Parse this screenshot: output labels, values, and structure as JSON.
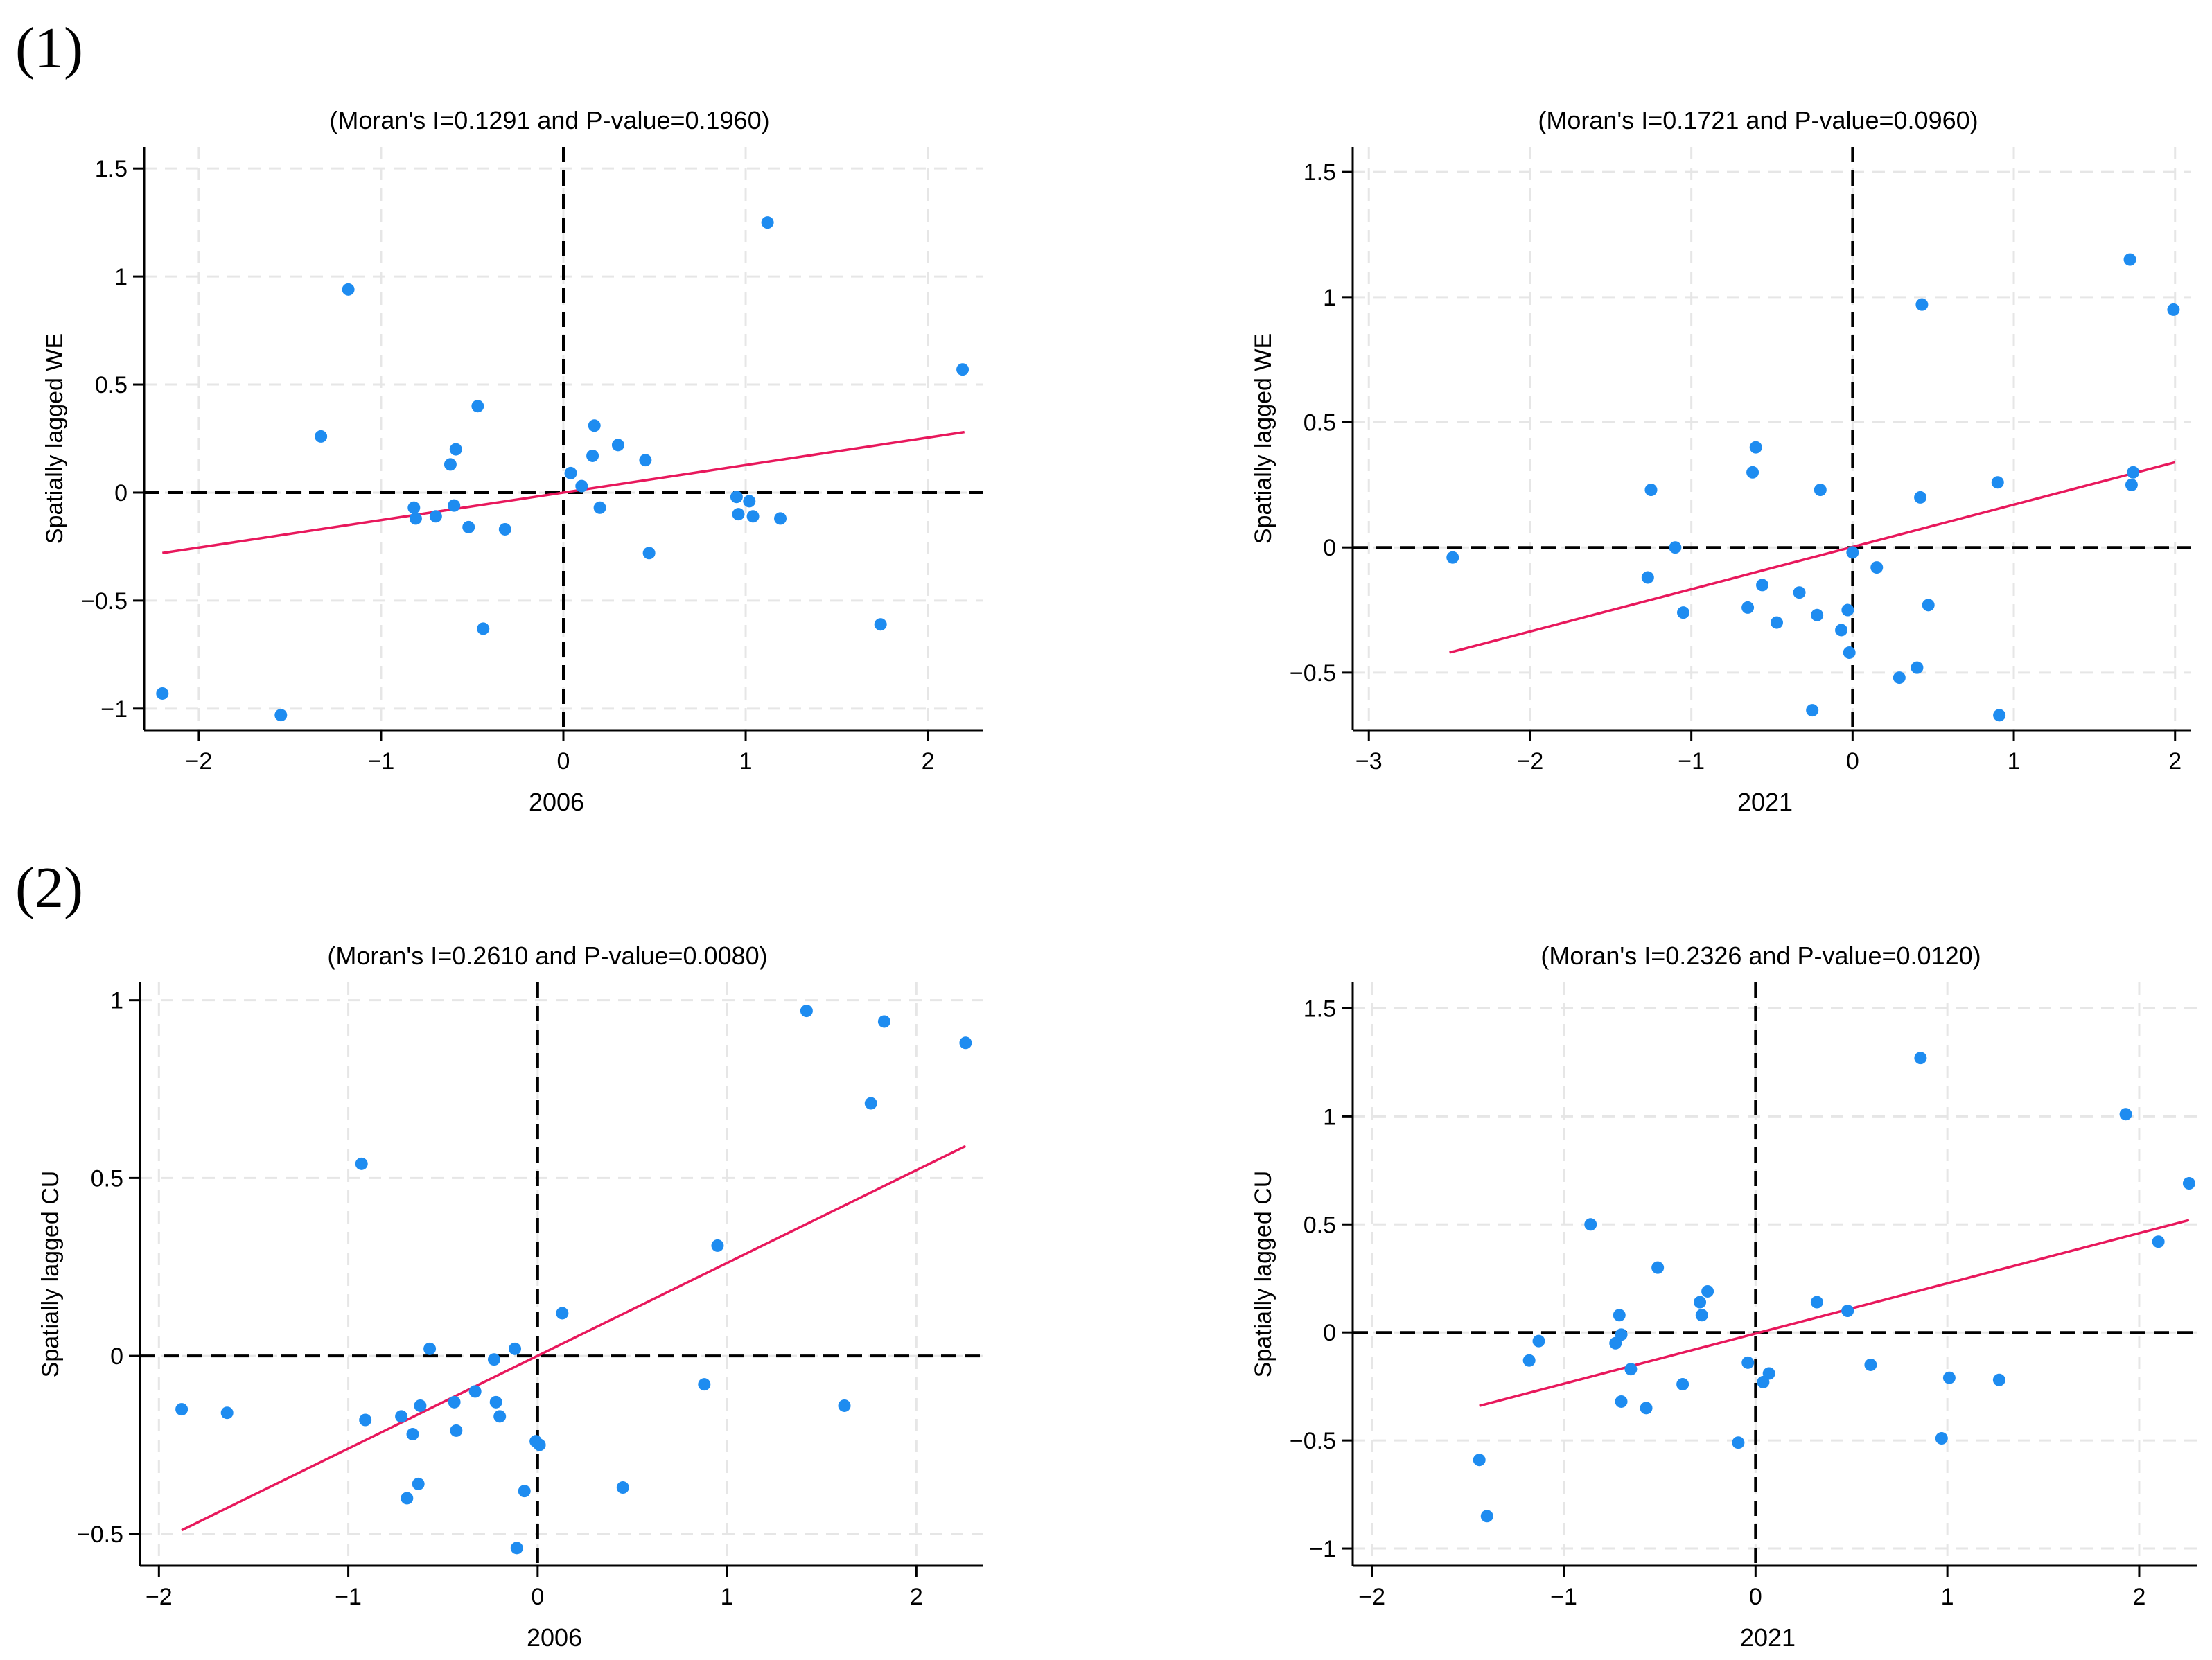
{
  "figure": {
    "section_labels": [
      "(1)",
      "(2)"
    ]
  },
  "colors": {
    "point": "#1e8cf0",
    "fit": "#e8185c",
    "grid": "#e6e6e6",
    "axis": "#000000"
  },
  "chart_data": [
    {
      "type": "scatter",
      "title": "(Moran's I=0.1291 and P-value=0.1960)",
      "xlabel": "2006",
      "ylabel": "Spatially lagged WE",
      "xlim": [
        -2.3,
        2.3
      ],
      "ylim": [
        -1.1,
        1.6
      ],
      "xticks": [
        -2,
        -1,
        0,
        1,
        2
      ],
      "yticks": [
        -1,
        -0.5,
        0,
        0.5,
        1,
        1.5
      ],
      "xtick_labels": [
        "−2",
        "−1",
        "0",
        "1",
        "2"
      ],
      "ytick_labels": [
        "−1",
        "−0.5",
        "0",
        "0.5",
        "1",
        "1.5"
      ],
      "fit_line": {
        "x": [
          -2.2,
          2.2
        ],
        "y": [
          -0.28,
          0.28
        ]
      },
      "points": [
        [
          -2.2,
          -0.93
        ],
        [
          -1.55,
          -1.03
        ],
        [
          -1.33,
          0.26
        ],
        [
          -1.18,
          0.94
        ],
        [
          -0.82,
          -0.07
        ],
        [
          -0.81,
          -0.12
        ],
        [
          -0.7,
          -0.11
        ],
        [
          -0.62,
          0.13
        ],
        [
          -0.59,
          0.2
        ],
        [
          -0.6,
          -0.06
        ],
        [
          -0.52,
          -0.16
        ],
        [
          -0.47,
          0.4
        ],
        [
          -0.44,
          -0.63
        ],
        [
          -0.32,
          -0.17
        ],
        [
          0.04,
          0.09
        ],
        [
          0.1,
          0.03
        ],
        [
          0.16,
          0.17
        ],
        [
          0.17,
          0.31
        ],
        [
          0.2,
          -0.07
        ],
        [
          0.3,
          0.22
        ],
        [
          0.45,
          0.15
        ],
        [
          0.47,
          -0.28
        ],
        [
          0.95,
          -0.02
        ],
        [
          0.96,
          -0.1
        ],
        [
          1.02,
          -0.04
        ],
        [
          1.04,
          -0.11
        ],
        [
          1.12,
          1.25
        ],
        [
          1.19,
          -0.12
        ],
        [
          1.74,
          -0.61
        ],
        [
          2.19,
          0.57
        ]
      ]
    },
    {
      "type": "scatter",
      "title": "(Moran's I=0.1721 and P-value=0.0960)",
      "xlabel": "2021",
      "ylabel": "Spatially lagged WE",
      "xlim": [
        -3.1,
        2.1
      ],
      "ylim": [
        -0.73,
        1.6
      ],
      "xticks": [
        -3,
        -2,
        -1,
        0,
        1,
        2
      ],
      "yticks": [
        -0.5,
        0,
        0.5,
        1,
        1.5
      ],
      "xtick_labels": [
        "−3",
        "−2",
        "−1",
        "0",
        "1",
        "2"
      ],
      "ytick_labels": [
        "−0.5",
        "0",
        "0.5",
        "1",
        "1.5"
      ],
      "fit_line": {
        "x": [
          -2.5,
          2.0
        ],
        "y": [
          -0.42,
          0.34
        ]
      },
      "points": [
        [
          -2.48,
          -0.04
        ],
        [
          -1.27,
          -0.12
        ],
        [
          -1.25,
          0.23
        ],
        [
          -1.1,
          0.0
        ],
        [
          -1.05,
          -0.26
        ],
        [
          -0.65,
          -0.24
        ],
        [
          -0.62,
          0.3
        ],
        [
          -0.6,
          0.4
        ],
        [
          -0.56,
          -0.15
        ],
        [
          -0.47,
          -0.3
        ],
        [
          -0.33,
          -0.18
        ],
        [
          -0.25,
          -0.65
        ],
        [
          -0.22,
          -0.27
        ],
        [
          -0.2,
          0.23
        ],
        [
          -0.07,
          -0.33
        ],
        [
          -0.03,
          -0.25
        ],
        [
          -0.02,
          -0.42
        ],
        [
          0.0,
          -0.02
        ],
        [
          0.15,
          -0.08
        ],
        [
          0.29,
          -0.52
        ],
        [
          0.4,
          -0.48
        ],
        [
          0.42,
          0.2
        ],
        [
          0.43,
          0.97
        ],
        [
          0.47,
          -0.23
        ],
        [
          0.9,
          0.26
        ],
        [
          0.91,
          -0.67
        ],
        [
          1.72,
          1.15
        ],
        [
          1.73,
          0.25
        ],
        [
          1.74,
          0.3
        ],
        [
          1.99,
          0.95
        ]
      ]
    },
    {
      "type": "scatter",
      "title": "(Moran's I=0.2610 and P-value=0.0080)",
      "xlabel": "2006",
      "ylabel": "Spatially lagged CU",
      "xlim": [
        -2.1,
        2.35
      ],
      "ylim": [
        -0.59,
        1.05
      ],
      "xticks": [
        -2,
        -1,
        0,
        1,
        2
      ],
      "yticks": [
        -0.5,
        0,
        0.5,
        1
      ],
      "xtick_labels": [
        "−2",
        "−1",
        "0",
        "1",
        "2"
      ],
      "ytick_labels": [
        "−0.5",
        "0",
        "0.5",
        "1"
      ],
      "fit_line": {
        "x": [
          -1.88,
          2.26
        ],
        "y": [
          -0.49,
          0.59
        ]
      },
      "points": [
        [
          -1.88,
          -0.15
        ],
        [
          -1.64,
          -0.16
        ],
        [
          -0.93,
          0.54
        ],
        [
          -0.91,
          -0.18
        ],
        [
          -0.72,
          -0.17
        ],
        [
          -0.69,
          -0.4
        ],
        [
          -0.66,
          -0.22
        ],
        [
          -0.63,
          -0.36
        ],
        [
          -0.62,
          -0.14
        ],
        [
          -0.57,
          0.02
        ],
        [
          -0.44,
          -0.13
        ],
        [
          -0.43,
          -0.21
        ],
        [
          -0.33,
          -0.1
        ],
        [
          -0.23,
          -0.01
        ],
        [
          -0.22,
          -0.13
        ],
        [
          -0.2,
          -0.17
        ],
        [
          -0.12,
          0.02
        ],
        [
          -0.11,
          -0.54
        ],
        [
          -0.07,
          -0.38
        ],
        [
          -0.01,
          -0.24
        ],
        [
          0.01,
          -0.25
        ],
        [
          0.13,
          0.12
        ],
        [
          0.45,
          -0.37
        ],
        [
          0.88,
          -0.08
        ],
        [
          0.95,
          0.31
        ],
        [
          1.42,
          0.97
        ],
        [
          1.62,
          -0.14
        ],
        [
          1.76,
          0.71
        ],
        [
          1.83,
          0.94
        ],
        [
          2.26,
          0.88
        ]
      ]
    },
    {
      "type": "scatter",
      "title": "(Moran's I=0.2326 and P-value=0.0120)",
      "xlabel": "2021",
      "ylabel": "Spatially lagged CU",
      "xlim": [
        -2.1,
        2.3
      ],
      "ylim": [
        -1.08,
        1.62
      ],
      "xticks": [
        -2,
        -1,
        0,
        1,
        2
      ],
      "yticks": [
        -1,
        -0.5,
        0,
        0.5,
        1,
        1.5
      ],
      "xtick_labels": [
        "−2",
        "−1",
        "0",
        "1",
        "2"
      ],
      "ytick_labels": [
        "−1",
        "−0.5",
        "0",
        "0.5",
        "1",
        "1.5"
      ],
      "fit_line": {
        "x": [
          -1.44,
          2.26
        ],
        "y": [
          -0.34,
          0.52
        ]
      },
      "points": [
        [
          -1.44,
          -0.59
        ],
        [
          -1.4,
          -0.85
        ],
        [
          -1.18,
          -0.13
        ],
        [
          -1.13,
          -0.04
        ],
        [
          -0.86,
          0.5
        ],
        [
          -0.73,
          -0.05
        ],
        [
          -0.71,
          0.08
        ],
        [
          -0.7,
          -0.01
        ],
        [
          -0.7,
          -0.32
        ],
        [
          -0.65,
          -0.17
        ],
        [
          -0.57,
          -0.35
        ],
        [
          -0.51,
          0.3
        ],
        [
          -0.38,
          -0.24
        ],
        [
          -0.29,
          0.14
        ],
        [
          -0.28,
          0.08
        ],
        [
          -0.25,
          0.19
        ],
        [
          -0.09,
          -0.51
        ],
        [
          -0.04,
          -0.14
        ],
        [
          0.04,
          -0.23
        ],
        [
          0.07,
          -0.19
        ],
        [
          0.32,
          0.14
        ],
        [
          0.48,
          0.1
        ],
        [
          0.6,
          -0.15
        ],
        [
          0.86,
          1.27
        ],
        [
          0.97,
          -0.49
        ],
        [
          1.01,
          -0.21
        ],
        [
          1.27,
          -0.22
        ],
        [
          1.93,
          1.01
        ],
        [
          2.1,
          0.42
        ],
        [
          2.26,
          0.69
        ]
      ]
    }
  ]
}
